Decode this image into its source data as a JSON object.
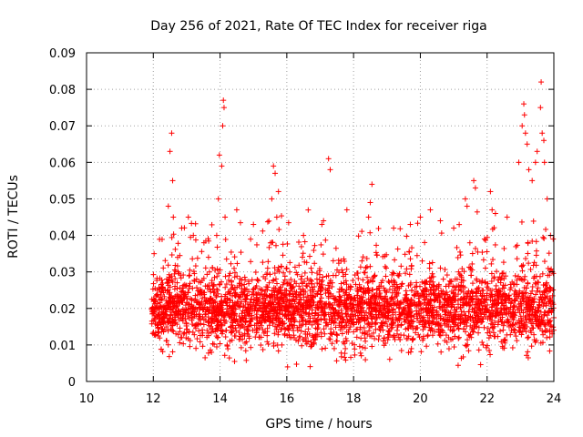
{
  "chart_data": {
    "type": "scatter",
    "title": "Day 256 of 2021, Rate Of TEC Index for receiver riga",
    "xlabel": "GPS time / hours",
    "ylabel": "ROTI / TECUs",
    "xlim": [
      10,
      24
    ],
    "ylim": [
      0,
      0.09
    ],
    "x_ticks": [
      10,
      12,
      14,
      16,
      18,
      20,
      22,
      24
    ],
    "x_tick_labels": [
      "10",
      "12",
      "14",
      "16",
      "18",
      "20",
      "22",
      "24"
    ],
    "y_ticks": [
      0,
      0.01,
      0.02,
      0.03,
      0.04,
      0.05,
      0.06,
      0.07,
      0.08,
      0.09
    ],
    "y_tick_labels": [
      "0",
      "0.01",
      "0.02",
      "0.03",
      "0.04",
      "0.05",
      "0.06",
      "0.07",
      "0.08",
      "0.09"
    ],
    "grid": true,
    "marker": "+",
    "marker_color": "#ff0000",
    "data_start_hour": 11.95,
    "data_end_hour": 24.0,
    "series": [
      {
        "name": "ROTI",
        "typical_range": [
          0.008,
          0.035
        ],
        "peak_points": [
          {
            "x": 12.55,
            "y": 0.068
          },
          {
            "x": 12.5,
            "y": 0.063
          },
          {
            "x": 12.58,
            "y": 0.055
          },
          {
            "x": 12.45,
            "y": 0.048
          },
          {
            "x": 12.6,
            "y": 0.045
          },
          {
            "x": 12.85,
            "y": 0.042
          },
          {
            "x": 13.05,
            "y": 0.045
          },
          {
            "x": 13.2,
            "y": 0.04
          },
          {
            "x": 13.9,
            "y": 0.04
          },
          {
            "x": 14.1,
            "y": 0.077
          },
          {
            "x": 14.12,
            "y": 0.075
          },
          {
            "x": 14.08,
            "y": 0.07
          },
          {
            "x": 13.98,
            "y": 0.062
          },
          {
            "x": 14.05,
            "y": 0.059
          },
          {
            "x": 13.95,
            "y": 0.05
          },
          {
            "x": 14.15,
            "y": 0.045
          },
          {
            "x": 14.5,
            "y": 0.047
          },
          {
            "x": 15.0,
            "y": 0.043
          },
          {
            "x": 15.6,
            "y": 0.059
          },
          {
            "x": 15.65,
            "y": 0.057
          },
          {
            "x": 15.55,
            "y": 0.05
          },
          {
            "x": 15.75,
            "y": 0.052
          },
          {
            "x": 15.7,
            "y": 0.045
          },
          {
            "x": 16.5,
            "y": 0.04
          },
          {
            "x": 17.25,
            "y": 0.061
          },
          {
            "x": 17.3,
            "y": 0.058
          },
          {
            "x": 17.1,
            "y": 0.044
          },
          {
            "x": 17.05,
            "y": 0.043
          },
          {
            "x": 17.8,
            "y": 0.047
          },
          {
            "x": 18.55,
            "y": 0.054
          },
          {
            "x": 18.5,
            "y": 0.049
          },
          {
            "x": 18.45,
            "y": 0.045
          },
          {
            "x": 19.2,
            "y": 0.042
          },
          {
            "x": 19.7,
            "y": 0.043
          },
          {
            "x": 20.0,
            "y": 0.045
          },
          {
            "x": 20.3,
            "y": 0.047
          },
          {
            "x": 20.6,
            "y": 0.044
          },
          {
            "x": 21.0,
            "y": 0.042
          },
          {
            "x": 21.35,
            "y": 0.05
          },
          {
            "x": 21.4,
            "y": 0.048
          },
          {
            "x": 21.6,
            "y": 0.055
          },
          {
            "x": 21.65,
            "y": 0.053
          },
          {
            "x": 22.1,
            "y": 0.052
          },
          {
            "x": 22.15,
            "y": 0.047
          },
          {
            "x": 22.25,
            "y": 0.046
          },
          {
            "x": 22.6,
            "y": 0.045
          },
          {
            "x": 22.95,
            "y": 0.06
          },
          {
            "x": 23.05,
            "y": 0.07
          },
          {
            "x": 23.1,
            "y": 0.076
          },
          {
            "x": 23.12,
            "y": 0.073
          },
          {
            "x": 23.15,
            "y": 0.068
          },
          {
            "x": 23.2,
            "y": 0.065
          },
          {
            "x": 23.25,
            "y": 0.058
          },
          {
            "x": 23.35,
            "y": 0.055
          },
          {
            "x": 23.45,
            "y": 0.06
          },
          {
            "x": 23.5,
            "y": 0.063
          },
          {
            "x": 23.6,
            "y": 0.075
          },
          {
            "x": 23.62,
            "y": 0.082
          },
          {
            "x": 23.65,
            "y": 0.068
          },
          {
            "x": 23.7,
            "y": 0.066
          },
          {
            "x": 23.72,
            "y": 0.06
          },
          {
            "x": 23.8,
            "y": 0.05
          },
          {
            "x": 23.9,
            "y": 0.04
          },
          {
            "x": 23.98,
            "y": 0.039
          }
        ]
      }
    ]
  }
}
